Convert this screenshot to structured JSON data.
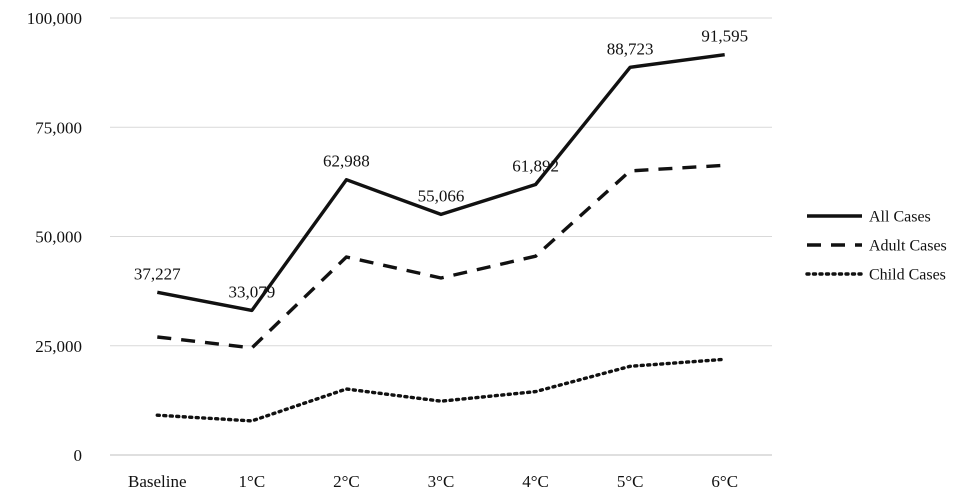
{
  "chart_data": {
    "type": "line",
    "title": "",
    "xlabel": "",
    "ylabel": "",
    "categories": [
      "Baseline",
      "1°C",
      "2°C",
      "3°C",
      "4°C",
      "5°C",
      "6°C"
    ],
    "ylim": [
      0,
      100000
    ],
    "yticks": [
      0,
      25000,
      50000,
      75000,
      100000
    ],
    "ytick_labels": [
      "0",
      "25,000",
      "50,000",
      "75,000",
      "100,000"
    ],
    "grid": true,
    "legend": "right",
    "series": [
      {
        "name": "All Cases",
        "style": "solid",
        "color": "#111111",
        "values": [
          37227,
          33079,
          62988,
          55066,
          61892,
          88723,
          91595
        ],
        "data_labels": [
          "37,227",
          "33,079",
          "62,988",
          "55,066",
          "61,892",
          "88,723",
          "91,595"
        ]
      },
      {
        "name": "Adult Cases",
        "style": "dashed",
        "color": "#111111",
        "values": [
          27000,
          24500,
          45300,
          40500,
          45500,
          65000,
          66300
        ]
      },
      {
        "name": "Child Cases",
        "style": "dotted",
        "color": "#111111",
        "values": [
          9100,
          7800,
          15100,
          12300,
          14500,
          20300,
          21900
        ]
      }
    ]
  }
}
